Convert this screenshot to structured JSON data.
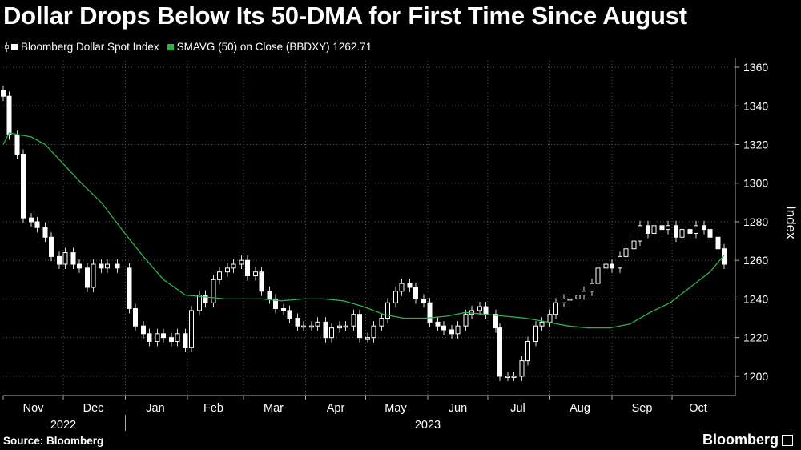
{
  "title": "Dollar Drops Below Its 50-DMA for First Time Since August",
  "legend": [
    {
      "label": "Bloomberg Dollar Spot Index",
      "color": "#ffffff",
      "kind": "candlestick"
    },
    {
      "label": "SMAVG (50)  on Close (BBDXY) 1262.71",
      "color": "#2db34a",
      "kind": "line"
    }
  ],
  "source": "Source: Bloomberg",
  "brand": "Bloomberg",
  "chart_data": {
    "type": "candlestick",
    "ylabel": "Index",
    "ylim": [
      1190,
      1365
    ],
    "y_ticks": [
      1200,
      1220,
      1240,
      1260,
      1280,
      1300,
      1320,
      1340,
      1360
    ],
    "grid": true,
    "y_axis_side": "right",
    "x_months": [
      "Nov",
      "Dec",
      "Jan",
      "Feb",
      "Mar",
      "Apr",
      "May",
      "Jun",
      "Jul",
      "Aug",
      "Sep",
      "Oct"
    ],
    "x_years": [
      "2022",
      "2023"
    ],
    "x_range": [
      "2022-11-01",
      "2023-10-27"
    ],
    "series": [
      {
        "name": "Bloomberg Dollar Spot Index",
        "kind": "close",
        "x": [
          "2022-11-01",
          "2022-11-04",
          "2022-11-08",
          "2022-11-11",
          "2022-11-15",
          "2022-11-18",
          "2022-11-22",
          "2022-11-25",
          "2022-11-29",
          "2022-12-02",
          "2022-12-06",
          "2022-12-09",
          "2022-12-13",
          "2022-12-16",
          "2022-12-20",
          "2022-12-23",
          "2022-12-28",
          "2023-01-03",
          "2023-01-06",
          "2023-01-10",
          "2023-01-13",
          "2023-01-17",
          "2023-01-20",
          "2023-01-24",
          "2023-01-27",
          "2023-01-31",
          "2023-02-03",
          "2023-02-07",
          "2023-02-10",
          "2023-02-14",
          "2023-02-17",
          "2023-02-21",
          "2023-02-24",
          "2023-02-28",
          "2023-03-03",
          "2023-03-07",
          "2023-03-10",
          "2023-03-14",
          "2023-03-17",
          "2023-03-21",
          "2023-03-24",
          "2023-03-28",
          "2023-03-31",
          "2023-04-04",
          "2023-04-07",
          "2023-04-11",
          "2023-04-14",
          "2023-04-18",
          "2023-04-21",
          "2023-04-25",
          "2023-04-28",
          "2023-05-02",
          "2023-05-05",
          "2023-05-09",
          "2023-05-12",
          "2023-05-16",
          "2023-05-19",
          "2023-05-23",
          "2023-05-26",
          "2023-05-30",
          "2023-06-02",
          "2023-06-06",
          "2023-06-09",
          "2023-06-13",
          "2023-06-16",
          "2023-06-20",
          "2023-06-23",
          "2023-06-27",
          "2023-06-30",
          "2023-07-05",
          "2023-07-07",
          "2023-07-11",
          "2023-07-14",
          "2023-07-18",
          "2023-07-21",
          "2023-07-25",
          "2023-07-28",
          "2023-08-01",
          "2023-08-04",
          "2023-08-08",
          "2023-08-11",
          "2023-08-15",
          "2023-08-18",
          "2023-08-22",
          "2023-08-25",
          "2023-08-29",
          "2023-09-01",
          "2023-09-05",
          "2023-09-08",
          "2023-09-12",
          "2023-09-15",
          "2023-09-19",
          "2023-09-22",
          "2023-09-26",
          "2023-09-29",
          "2023-10-03",
          "2023-10-06",
          "2023-10-10",
          "2023-10-13",
          "2023-10-17",
          "2023-10-20",
          "2023-10-24",
          "2023-10-27"
        ],
        "close": [
          1345,
          1325,
          1315,
          1282,
          1280,
          1277,
          1272,
          1262,
          1258,
          1264,
          1258,
          1256,
          1246,
          1258,
          1256,
          1258,
          1256,
          1235,
          1226,
          1222,
          1218,
          1222,
          1220,
          1218,
          1222,
          1215,
          1234,
          1242,
          1238,
          1250,
          1254,
          1256,
          1258,
          1260,
          1252,
          1254,
          1244,
          1240,
          1235,
          1234,
          1230,
          1226,
          1226,
          1226,
          1228,
          1220,
          1225,
          1226,
          1226,
          1232,
          1220,
          1220,
          1226,
          1230,
          1238,
          1244,
          1248,
          1246,
          1240,
          1238,
          1228,
          1226,
          1224,
          1222,
          1226,
          1232,
          1234,
          1236,
          1232,
          1225,
          1200,
          1200,
          1200,
          1208,
          1218,
          1226,
          1228,
          1232,
          1238,
          1240,
          1240,
          1242,
          1244,
          1248,
          1256,
          1258,
          1256,
          1262,
          1266,
          1270,
          1278,
          1274,
          1278,
          1276,
          1278,
          1272,
          1276,
          1274,
          1278,
          1276,
          1272,
          1266,
          1258
        ]
      },
      {
        "name": "SMAVG (50)  on Close (BBDXY) 1262.71",
        "kind": "line",
        "x": [
          "2022-11-01",
          "2022-11-04",
          "2022-11-15",
          "2022-11-22",
          "2022-12-01",
          "2022-12-10",
          "2022-12-20",
          "2022-12-31",
          "2023-01-10",
          "2023-01-20",
          "2023-01-31",
          "2023-02-10",
          "2023-02-20",
          "2023-02-28",
          "2023-03-10",
          "2023-03-20",
          "2023-03-31",
          "2023-04-10",
          "2023-04-20",
          "2023-04-30",
          "2023-05-10",
          "2023-05-20",
          "2023-05-31",
          "2023-06-10",
          "2023-06-20",
          "2023-06-30",
          "2023-07-10",
          "2023-07-20",
          "2023-07-31",
          "2023-08-10",
          "2023-08-20",
          "2023-08-31",
          "2023-09-10",
          "2023-09-20",
          "2023-09-30",
          "2023-10-10",
          "2023-10-20",
          "2023-10-27"
        ],
        "y": [
          1320,
          1326,
          1324,
          1320,
          1310,
          1300,
          1290,
          1275,
          1262,
          1250,
          1242,
          1241,
          1240,
          1240,
          1240,
          1239,
          1240,
          1240,
          1239,
          1236,
          1232,
          1230,
          1230,
          1231,
          1233,
          1232,
          1231,
          1230,
          1228,
          1226,
          1225,
          1225,
          1227,
          1233,
          1238,
          1246,
          1254,
          1262.71
        ]
      }
    ]
  }
}
